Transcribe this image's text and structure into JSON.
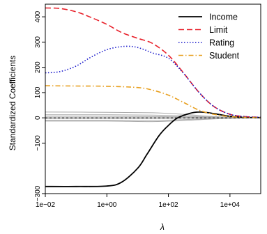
{
  "chart_data": {
    "type": "line",
    "xlabel": "λ",
    "ylabel": "Standardized Coefficients",
    "x_scale": "log",
    "xlim": [
      0.01,
      100000
    ],
    "ylim": [
      -300,
      450
    ],
    "x_ticks": [
      {
        "value": 0.01,
        "label": "1e−02"
      },
      {
        "value": 1,
        "label": "1e+00"
      },
      {
        "value": 100,
        "label": "1e+02"
      },
      {
        "value": 10000,
        "label": "1e+04"
      }
    ],
    "y_ticks": [
      {
        "value": -300,
        "label": "−300"
      },
      {
        "value": -100,
        "label": "−100"
      },
      {
        "value": 0,
        "label": "0"
      },
      {
        "value": 100,
        "label": "100"
      },
      {
        "value": 200,
        "label": "200"
      },
      {
        "value": 300,
        "label": "300"
      },
      {
        "value": 400,
        "label": "400"
      }
    ],
    "legend_position": "top-right",
    "grid": false,
    "series": [
      {
        "name": "Income",
        "color": "#000000",
        "dash": "solid",
        "points": [
          [
            0.01,
            -272
          ],
          [
            0.1,
            -272
          ],
          [
            1,
            -270
          ],
          [
            3,
            -255
          ],
          [
            10,
            -200
          ],
          [
            20,
            -145
          ],
          [
            50,
            -70
          ],
          [
            100,
            -30
          ],
          [
            200,
            0
          ],
          [
            500,
            18
          ],
          [
            1000,
            23
          ],
          [
            2000,
            20
          ],
          [
            5000,
            12
          ],
          [
            10000,
            6
          ],
          [
            30000,
            2
          ],
          [
            100000,
            1
          ]
        ]
      },
      {
        "name": "Limit",
        "color": "#e8202a",
        "dash": "dashed",
        "points": [
          [
            0.01,
            435
          ],
          [
            0.03,
            433
          ],
          [
            0.1,
            420
          ],
          [
            0.3,
            398
          ],
          [
            1,
            370
          ],
          [
            3,
            338
          ],
          [
            10,
            315
          ],
          [
            30,
            295
          ],
          [
            100,
            248
          ],
          [
            300,
            180
          ],
          [
            1000,
            100
          ],
          [
            3000,
            45
          ],
          [
            10000,
            14
          ],
          [
            30000,
            5
          ],
          [
            100000,
            2
          ]
        ]
      },
      {
        "name": "Rating",
        "color": "#1a1acc",
        "dash": "dotted",
        "points": [
          [
            0.01,
            178
          ],
          [
            0.03,
            183
          ],
          [
            0.1,
            205
          ],
          [
            0.3,
            240
          ],
          [
            1,
            270
          ],
          [
            3,
            282
          ],
          [
            7,
            282
          ],
          [
            15,
            272
          ],
          [
            30,
            257
          ],
          [
            100,
            236
          ],
          [
            300,
            178
          ],
          [
            1000,
            100
          ],
          [
            3000,
            45
          ],
          [
            10000,
            14
          ],
          [
            30000,
            5
          ],
          [
            100000,
            2
          ]
        ]
      },
      {
        "name": "Student",
        "color": "#e8a020",
        "dash": "dashdot",
        "points": [
          [
            0.01,
            127
          ],
          [
            0.1,
            126
          ],
          [
            1,
            125
          ],
          [
            10,
            120
          ],
          [
            30,
            110
          ],
          [
            100,
            90
          ],
          [
            300,
            62
          ],
          [
            1000,
            30
          ],
          [
            3000,
            14
          ],
          [
            10000,
            5
          ],
          [
            30000,
            2
          ],
          [
            100000,
            1
          ]
        ]
      }
    ],
    "other_series": {
      "color": "#a8a8a8",
      "lines": [
        [
          [
            0.01,
            23
          ],
          [
            1,
            22
          ],
          [
            30,
            20
          ],
          [
            300,
            14
          ],
          [
            3000,
            5
          ],
          [
            30000,
            1
          ],
          [
            100000,
            0
          ]
        ],
        [
          [
            0.01,
            12
          ],
          [
            1,
            12
          ],
          [
            30,
            11
          ],
          [
            300,
            8
          ],
          [
            3000,
            3
          ],
          [
            30000,
            1
          ],
          [
            100000,
            0
          ]
        ],
        [
          [
            0.01,
            6
          ],
          [
            1,
            6
          ],
          [
            30,
            5
          ],
          [
            300,
            4
          ],
          [
            3000,
            2
          ],
          [
            30000,
            0
          ],
          [
            100000,
            0
          ]
        ],
        [
          [
            0.01,
            1
          ],
          [
            1,
            1
          ],
          [
            30,
            1
          ],
          [
            300,
            1
          ],
          [
            3000,
            0
          ],
          [
            30000,
            0
          ],
          [
            100000,
            0
          ]
        ],
        [
          [
            0.01,
            -3
          ],
          [
            1,
            -3
          ],
          [
            30,
            -3
          ],
          [
            300,
            -2
          ],
          [
            3000,
            -1
          ],
          [
            30000,
            0
          ],
          [
            100000,
            0
          ]
        ],
        [
          [
            0.01,
            -9
          ],
          [
            1,
            -9
          ],
          [
            30,
            -10
          ],
          [
            300,
            -7
          ],
          [
            3000,
            -3
          ],
          [
            30000,
            -1
          ],
          [
            100000,
            0
          ]
        ],
        [
          [
            0.01,
            -13
          ],
          [
            1,
            -13
          ],
          [
            30,
            -15
          ],
          [
            300,
            -11
          ],
          [
            3000,
            -4
          ],
          [
            30000,
            -1
          ],
          [
            100000,
            0
          ]
        ]
      ]
    }
  }
}
